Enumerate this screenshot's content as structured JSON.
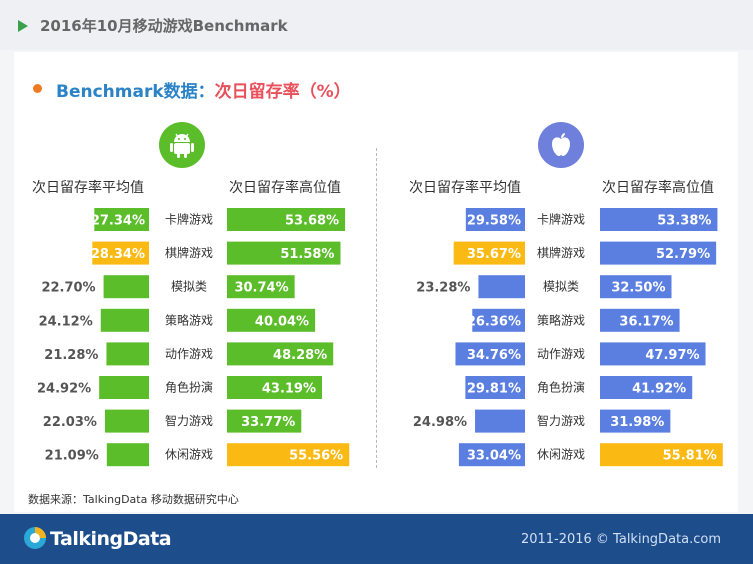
{
  "header": {
    "title": "2016年10月移动游戏Benchmark"
  },
  "subtitle": {
    "part1": "Benchmark数据：",
    "part2": "次日留存率（%）"
  },
  "android": {
    "col_avg": "次日留存率平均值",
    "col_high": "次日留存率高位值"
  },
  "ios": {
    "col_avg": "次日留存率平均值",
    "col_high": "次日留存率高位值"
  },
  "source": "数据来源：TalkingData 移动数据研究中心",
  "footer": {
    "logo": "TalkingData",
    "copyright": "2011-2016 © TalkingData.com"
  },
  "colors": {
    "android": "#5cbd2b",
    "ios": "#5b7fe0",
    "highlight": "#fbb913",
    "ios_icon": "#6f7fdc"
  },
  "chart_data": [
    {
      "type": "bar",
      "platform": "Android",
      "categories": [
        "卡牌游戏",
        "棋牌游戏",
        "模拟类",
        "策略游戏",
        "动作游戏",
        "角色扮演",
        "智力游戏",
        "休闲游戏"
      ],
      "series": [
        {
          "name": "次日留存率平均值",
          "values": [
            27.34,
            28.34,
            22.7,
            24.12,
            21.28,
            24.92,
            22.03,
            21.09
          ],
          "labels": [
            "27.34%",
            "28.34%",
            "22.70%",
            "24.12%",
            "21.28%",
            "24.92%",
            "22.03%",
            "21.09%"
          ],
          "highlight_index": 1
        },
        {
          "name": "次日留存率高位值",
          "values": [
            53.68,
            51.58,
            30.74,
            40.04,
            48.28,
            43.19,
            33.77,
            55.56
          ],
          "labels": [
            "53.68%",
            "51.58%",
            "30.74%",
            "40.04%",
            "48.28%",
            "43.19%",
            "33.77%",
            "55.56%"
          ],
          "highlight_index": 7
        }
      ]
    },
    {
      "type": "bar",
      "platform": "iOS",
      "categories": [
        "卡牌游戏",
        "棋牌游戏",
        "模拟类",
        "策略游戏",
        "动作游戏",
        "角色扮演",
        "智力游戏",
        "休闲游戏"
      ],
      "series": [
        {
          "name": "次日留存率平均值",
          "values": [
            29.58,
            35.67,
            23.28,
            26.36,
            34.76,
            29.81,
            24.98,
            33.04
          ],
          "labels": [
            "29.58%",
            "35.67%",
            "23.28%",
            "26.36%",
            "34.76%",
            "29.81%",
            "24.98%",
            "33.04%"
          ],
          "highlight_index": 1
        },
        {
          "name": "次日留存率高位值",
          "values": [
            53.38,
            52.79,
            32.5,
            36.17,
            47.97,
            41.92,
            31.98,
            55.81
          ],
          "labels": [
            "53.38%",
            "52.79%",
            "32.50%",
            "36.17%",
            "47.97%",
            "41.92%",
            "31.98%",
            "55.81%"
          ],
          "highlight_index": 7
        }
      ]
    }
  ]
}
